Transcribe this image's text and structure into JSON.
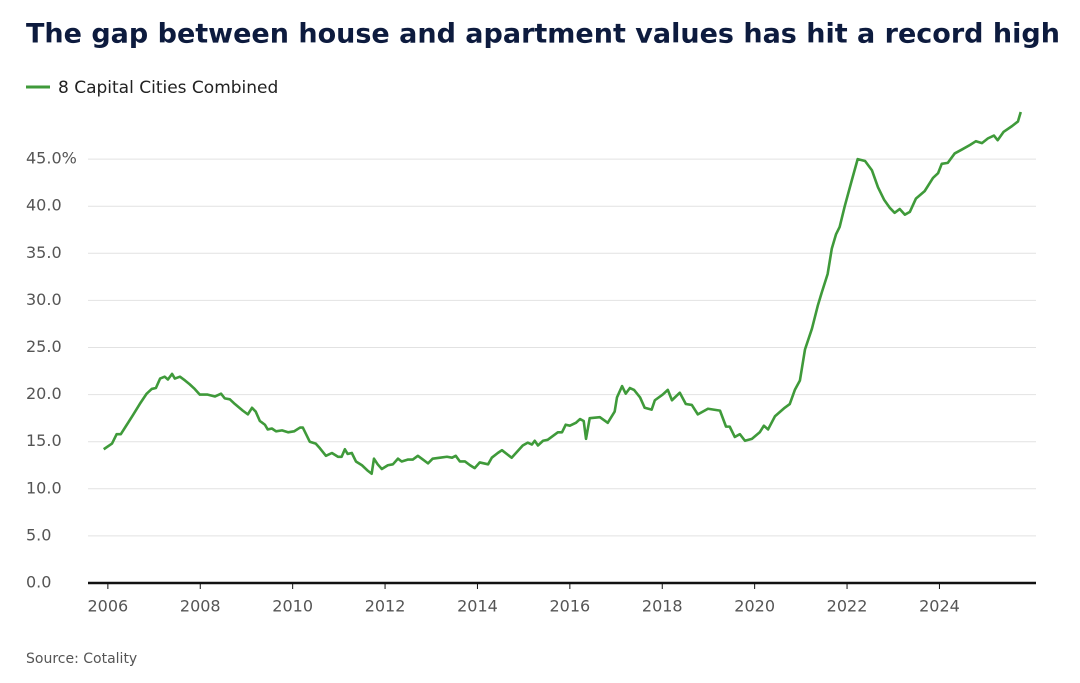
{
  "chart_data": {
    "type": "line",
    "title": "The gap between house and apartment values has hit a record high",
    "source": "Source: Cotality",
    "legend": "top-left",
    "grid": true,
    "xlim": [
      2005.57,
      2026.09
    ],
    "xticks": [
      2006,
      2008,
      2010,
      2012,
      2014,
      2016,
      2018,
      2020,
      2022,
      2024
    ],
    "ylim": [
      0,
      50
    ],
    "yticks": [
      {
        "value": 0,
        "label": "0.0"
      },
      {
        "value": 5,
        "label": "5.0"
      },
      {
        "value": 10,
        "label": "10.0"
      },
      {
        "value": 15,
        "label": "15.0"
      },
      {
        "value": 20,
        "label": "20.0"
      },
      {
        "value": 25,
        "label": "25.0"
      },
      {
        "value": 30,
        "label": "30.0"
      },
      {
        "value": 35,
        "label": "35.0"
      },
      {
        "value": 40,
        "label": "40.0"
      },
      {
        "value": 45,
        "label": "45.0%"
      }
    ],
    "x": [
      2005.91,
      2006.09,
      2006.19,
      2006.28,
      2006.41,
      2006.54,
      2006.69,
      2006.84,
      2006.95,
      2007.04,
      2007.13,
      2007.23,
      2007.3,
      2007.39,
      2007.45,
      2007.56,
      2007.67,
      2007.77,
      2007.88,
      2007.99,
      2008.16,
      2008.32,
      2008.45,
      2008.53,
      2008.64,
      2008.75,
      2008.92,
      2009.03,
      2009.12,
      2009.2,
      2009.29,
      2009.4,
      2009.46,
      2009.55,
      2009.64,
      2009.77,
      2009.9,
      2010.03,
      2010.16,
      2010.22,
      2010.37,
      2010.5,
      2010.59,
      2010.72,
      2010.85,
      2010.98,
      2011.06,
      2011.13,
      2011.19,
      2011.28,
      2011.37,
      2011.5,
      2011.63,
      2011.71,
      2011.76,
      2011.84,
      2011.93,
      2012.06,
      2012.17,
      2012.28,
      2012.36,
      2012.49,
      2012.6,
      2012.71,
      2012.82,
      2012.93,
      2013.03,
      2013.19,
      2013.34,
      2013.45,
      2013.53,
      2013.62,
      2013.73,
      2013.84,
      2013.94,
      2014.05,
      2014.23,
      2014.31,
      2014.44,
      2014.53,
      2014.66,
      2014.74,
      2014.87,
      2014.98,
      2015.09,
      2015.18,
      2015.24,
      2015.31,
      2015.42,
      2015.52,
      2015.63,
      2015.74,
      2015.83,
      2015.91,
      2016.0,
      2016.13,
      2016.22,
      2016.3,
      2016.35,
      2016.43,
      2016.65,
      2016.82,
      2016.97,
      2017.02,
      2017.13,
      2017.21,
      2017.3,
      2017.39,
      2017.52,
      2017.62,
      2017.77,
      2017.84,
      2018.01,
      2018.12,
      2018.21,
      2018.38,
      2018.51,
      2018.64,
      2018.77,
      2018.99,
      2019.25,
      2019.38,
      2019.46,
      2019.57,
      2019.68,
      2019.79,
      2019.94,
      2020.11,
      2020.2,
      2020.29,
      2020.44,
      2020.65,
      2020.76,
      2020.87,
      2020.98,
      2021.09,
      2021.24,
      2021.37,
      2021.45,
      2021.58,
      2021.67,
      2021.76,
      2021.84,
      2021.95,
      2022.1,
      2022.23,
      2022.39,
      2022.54,
      2022.67,
      2022.8,
      2022.93,
      2023.03,
      2023.14,
      2023.25,
      2023.36,
      2023.49,
      2023.68,
      2023.86,
      2023.97,
      2024.05,
      2024.18,
      2024.33,
      2024.48,
      2024.66,
      2024.79,
      2024.92,
      2025.05,
      2025.18,
      2025.26,
      2025.39,
      2025.57,
      2025.7,
      2025.76
    ],
    "series": [
      {
        "name": "8 Capital Cities Combined",
        "color": "#3f9a3a",
        "values": [
          14.2,
          14.8,
          15.8,
          15.8,
          16.8,
          17.8,
          19.0,
          20.1,
          20.6,
          20.7,
          21.7,
          21.9,
          21.6,
          22.2,
          21.7,
          21.9,
          21.5,
          21.1,
          20.6,
          20.0,
          20.0,
          19.8,
          20.1,
          19.6,
          19.5,
          19.0,
          18.3,
          17.9,
          18.6,
          18.2,
          17.2,
          16.8,
          16.3,
          16.4,
          16.1,
          16.2,
          16.0,
          16.1,
          16.5,
          16.5,
          15.0,
          14.8,
          14.3,
          13.5,
          13.8,
          13.4,
          13.4,
          14.2,
          13.7,
          13.8,
          12.9,
          12.5,
          11.9,
          11.6,
          13.2,
          12.6,
          12.1,
          12.5,
          12.6,
          13.2,
          12.9,
          13.1,
          13.1,
          13.5,
          13.1,
          12.7,
          13.2,
          13.3,
          13.4,
          13.3,
          13.5,
          12.9,
          12.9,
          12.5,
          12.2,
          12.8,
          12.6,
          13.3,
          13.8,
          14.1,
          13.6,
          13.3,
          14.0,
          14.6,
          14.9,
          14.7,
          15.1,
          14.6,
          15.1,
          15.2,
          15.6,
          16.0,
          16.0,
          16.8,
          16.7,
          17.0,
          17.4,
          17.2,
          15.3,
          17.5,
          17.6,
          17.0,
          18.2,
          19.7,
          20.9,
          20.1,
          20.7,
          20.5,
          19.7,
          18.6,
          18.4,
          19.4,
          20.0,
          20.5,
          19.4,
          20.2,
          19.0,
          18.9,
          17.9,
          18.5,
          18.3,
          16.6,
          16.6,
          15.5,
          15.8,
          15.1,
          15.3,
          16.0,
          16.7,
          16.3,
          17.7,
          18.6,
          19.0,
          20.5,
          21.5,
          24.8,
          27.0,
          29.5,
          30.8,
          32.8,
          35.5,
          37.0,
          37.8,
          40.0,
          42.7,
          45.0,
          44.8,
          43.8,
          42.0,
          40.7,
          39.8,
          39.3,
          39.7,
          39.1,
          39.4,
          40.8,
          41.6,
          43.0,
          43.5,
          44.5,
          44.6,
          45.6,
          46.0,
          46.5,
          46.9,
          46.7,
          47.2,
          47.5,
          47.0,
          47.9,
          48.5,
          49.0,
          50.0
        ]
      }
    ]
  }
}
